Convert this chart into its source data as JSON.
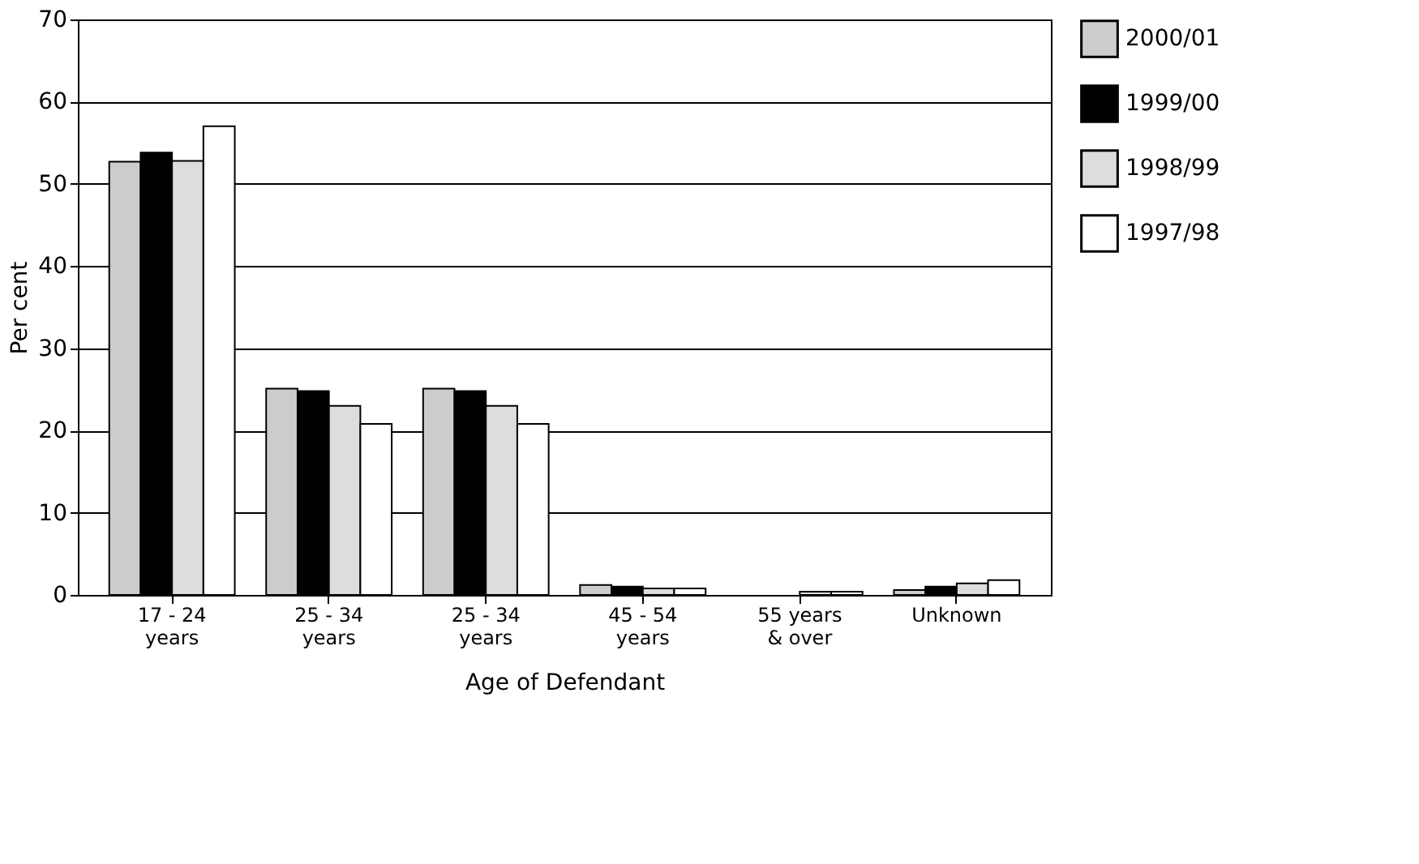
{
  "chart_data": {
    "type": "bar",
    "xlabel": "Age of Defendant",
    "ylabel": "Per cent",
    "categories": [
      "17 - 24\nyears",
      "25 - 34\nyears",
      "25 - 34\nyears",
      "45 - 54\nyears",
      "55 years\n& over",
      "Unknown"
    ],
    "series": [
      {
        "name": "2000/01",
        "color": "#cccccc",
        "values": [
          52.7,
          25.1,
          25.1,
          1.2,
          null,
          0.6
        ]
      },
      {
        "name": "1999/00",
        "color": "#000000",
        "values": [
          53.8,
          24.8,
          24.8,
          1.0,
          null,
          1.0
        ]
      },
      {
        "name": "1998/99",
        "color": "#dddddd",
        "values": [
          52.8,
          23.0,
          23.0,
          0.8,
          0.4,
          1.4
        ]
      },
      {
        "name": "1997/98",
        "color": "#ffffff",
        "values": [
          57.0,
          20.8,
          20.8,
          0.8,
          0.4,
          1.8
        ]
      }
    ],
    "ylim": [
      0,
      70
    ],
    "yticks": [
      0,
      10,
      20,
      30,
      40,
      50,
      60,
      70
    ],
    "grid": "y",
    "legend": "top right"
  }
}
